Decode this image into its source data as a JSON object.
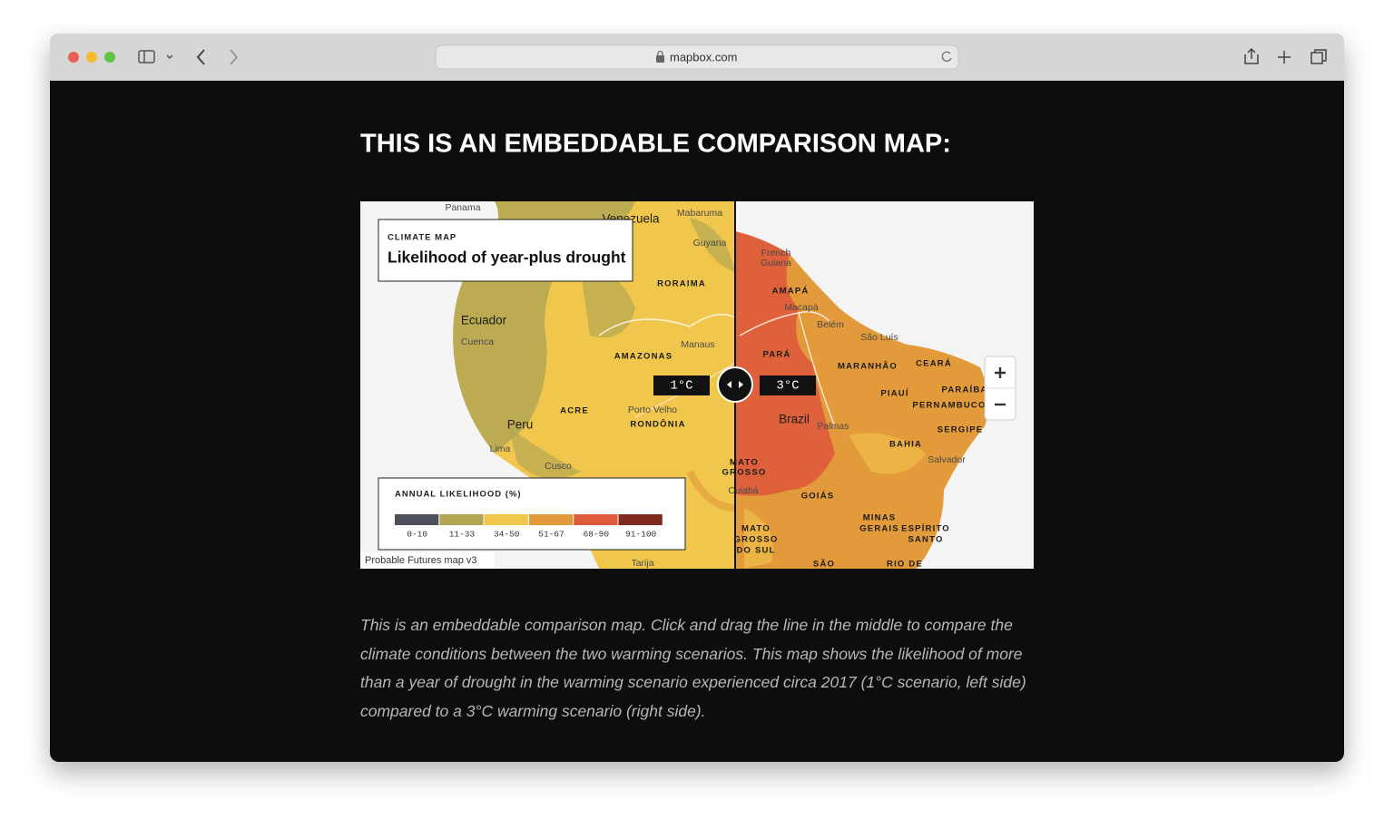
{
  "browser": {
    "url": "mapbox.com"
  },
  "heading": "THIS IS AN EMBEDDABLE COMPARISON MAP:",
  "map": {
    "eyebrow": "CLIMATE MAP",
    "title": "Likelihood of year-plus drought",
    "left_scenario": "1°C",
    "right_scenario": "3°C",
    "attribution": "Probable Futures map v3",
    "legend": {
      "title": "ANNUAL LIKELIHOOD (%)",
      "items": [
        {
          "label": "0-10",
          "color": "#4b505c"
        },
        {
          "label": "11-33",
          "color": "#b3a653"
        },
        {
          "label": "34-50",
          "color": "#f0c64c"
        },
        {
          "label": "51-67",
          "color": "#e39a3a"
        },
        {
          "label": "68-90",
          "color": "#de5b3c"
        },
        {
          "label": "91-100",
          "color": "#7f2a1c"
        }
      ]
    },
    "labels": [
      "Panama",
      "Venezuela",
      "Mabaruma",
      "Guyana",
      "RORAIMA",
      "Ecuador",
      "Cuenca",
      "Manaus",
      "AMAZONAS",
      "ACRE",
      "Porto Velho",
      "RONDÔNIA",
      "Peru",
      "Lima",
      "Cusco",
      "Tarija",
      "French",
      "Guiana",
      "AMAPÁ",
      "Macapá",
      "Belém",
      "São Luís",
      "PARÁ",
      "MARANHÃO",
      "CEARÁ",
      "PIAUÍ",
      "PARAÍBA",
      "PERNAMBUCO",
      "Brazil",
      "Palmas",
      "SERGIPE",
      "BAHIA",
      "Salvador",
      "MATO",
      "GROSSO",
      "Cuiabá",
      "GOIÁS",
      "MINAS",
      "GERAIS",
      "ESPÍRITO",
      "SANTO",
      "MATO",
      "GROSSO",
      "DO SUL",
      "SÃO",
      "RIO DE"
    ]
  },
  "caption": "This is an embeddable comparison map. Click and drag the line in the middle to compare the climate conditions between the two warming scenarios. This map shows the likelihood of more than a year of drought in the warming scenario experienced circa 2017 (1°C scenario, left side) compared to a 3°C warming scenario (right side)."
}
